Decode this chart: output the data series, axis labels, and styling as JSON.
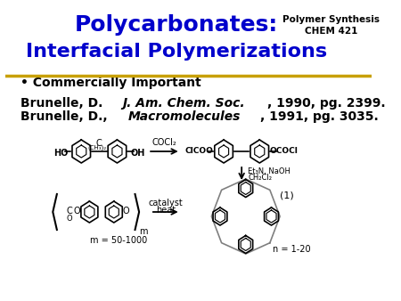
{
  "title_line1": "Polycarbonates:",
  "title_line2": "Interfacial Polymerizations",
  "title_color": "#0000CC",
  "subtitle_top_right_line1": "Polymer Synthesis",
  "subtitle_top_right_line2": "CHEM 421",
  "subtitle_color": "#000000",
  "bullet_text": "• Commercially Important",
  "ref_line1": "Brunelle, D. J. Am. Chem. Soc., 1990, pg. 2399.",
  "ref_line2": "Brunelle, D., Macromolecules, 1991, pg. 3035.",
  "background_color": "#ffffff",
  "separator_color": "#C8A000",
  "title_fontsize": 18,
  "subtitle_fontsize": 7.5,
  "bullet_fontsize": 10,
  "ref_fontsize": 10,
  "header_bg": "#ffffff"
}
